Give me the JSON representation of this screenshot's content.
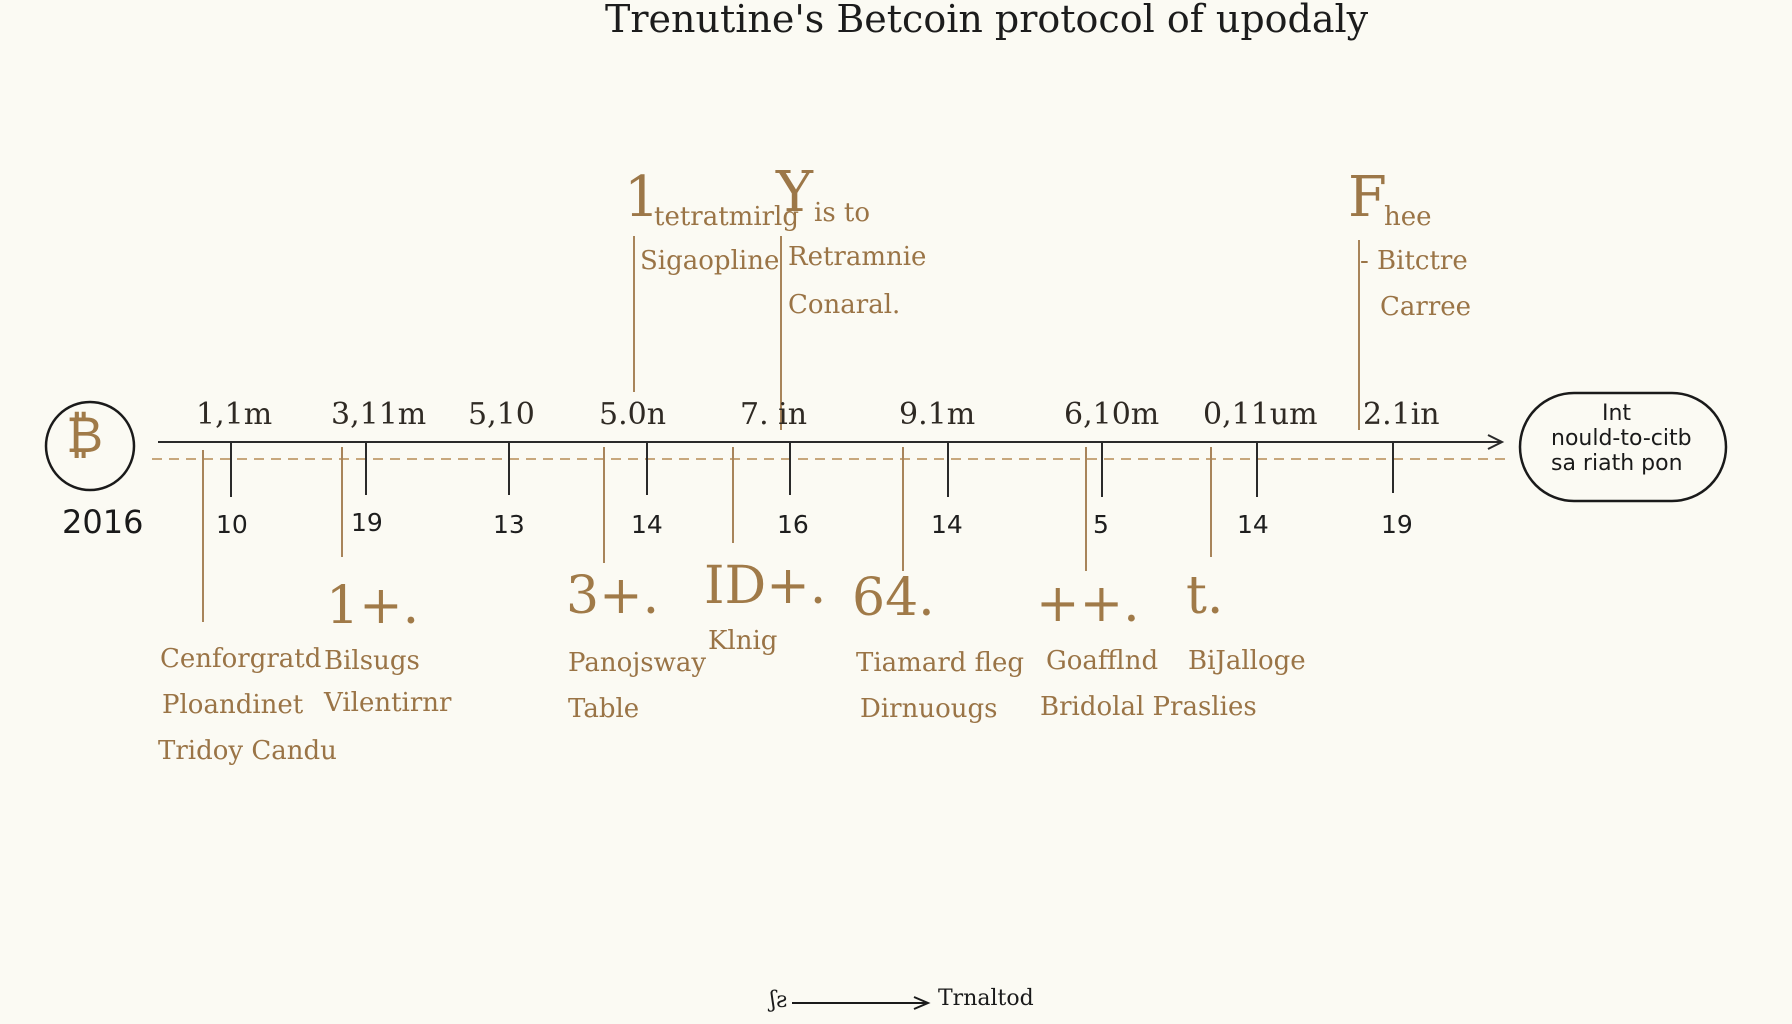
{
  "title": "Trenutine's Betcoin protocol of upodaly",
  "start": {
    "symbol": "₿",
    "year": "2016"
  },
  "end_node": {
    "line1": "Int",
    "line2": "nould-to-citb",
    "line3": "sa riath pon"
  },
  "top_labels": [
    "1,1m",
    "3,11m",
    "5,10",
    "5.0n",
    "7. in",
    "9.1m",
    "6,10m",
    "0,11um",
    "2.1in"
  ],
  "bottom_ticks": [
    "10",
    "19",
    "13",
    "14",
    "16",
    "14",
    "5",
    "14",
    "19"
  ],
  "callouts_above": [
    {
      "big": "1",
      "head": "tetratmirlg",
      "line2": "Sigaopline"
    },
    {
      "big": "Y",
      "head": "is to",
      "line2": "Retramnie",
      "line3": "Conaral."
    },
    {
      "big": "F",
      "head": "hee",
      "line2": "- Bitctre",
      "line3": "Carree"
    }
  ],
  "callouts_below": [
    {
      "lines": [
        "Cenforgratd",
        "Ploandinet",
        "Tridoy Candu"
      ]
    },
    {
      "big": "1+.",
      "lines": [
        "Bilsugs",
        "Vilentirnr"
      ]
    },
    {
      "big": "3+.",
      "lines": [
        "Panojsway",
        "Table"
      ]
    },
    {
      "big": "ID+.",
      "lines": [
        "Klnig"
      ]
    },
    {
      "big": "64.",
      "lines": [
        "Tiamard fleg",
        "Dirnuougs"
      ]
    },
    {
      "big": "++.",
      "lines": [
        "Goafflnd",
        "Bridolal Praslies"
      ]
    },
    {
      "big": "t.",
      "lines": [
        "BiJalloge"
      ]
    }
  ],
  "legend": {
    "glyph": "ʃƨ",
    "label": "Trnaltod"
  },
  "colors": {
    "background": "#fbfaf3",
    "ink": "#1c1c1c",
    "accent": "#a07a48",
    "dashed_line": "#c7a77c"
  }
}
